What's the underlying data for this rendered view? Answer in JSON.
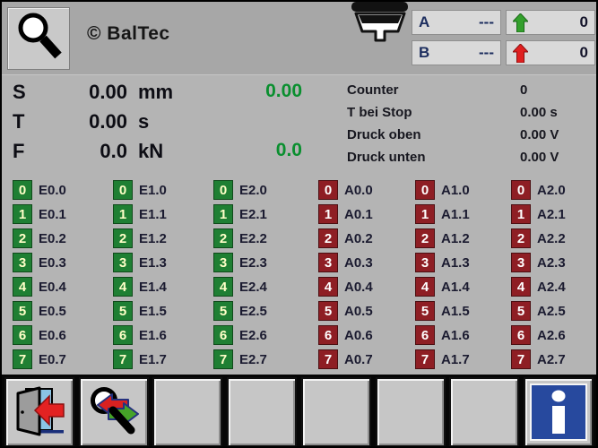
{
  "header": {
    "brand": "© BalTec",
    "screen_icon": "magnifier-icon",
    "tool_icon": "rivet-head-icon",
    "channels": [
      {
        "label": "A",
        "value": "---",
        "arrow": "green-up-arrow",
        "count": "0"
      },
      {
        "label": "B",
        "value": "---",
        "arrow": "red-up-arrow",
        "count": "0"
      }
    ]
  },
  "measurements": [
    {
      "label": "S",
      "value": "0.00",
      "unit": "mm",
      "result": "0.00"
    },
    {
      "label": "T",
      "value": "0.00",
      "unit": "s",
      "result": ""
    },
    {
      "label": "F",
      "value": "0.0",
      "unit": "kN",
      "result": "0.0"
    }
  ],
  "stats": [
    {
      "label": "Counter",
      "value": "0"
    },
    {
      "label": "T bei Stop",
      "value": "0.00 s"
    },
    {
      "label": "Druck oben",
      "value": "0.00 V"
    },
    {
      "label": "Druck unten",
      "value": "0.00 V"
    }
  ],
  "io_grid": {
    "columns": [
      {
        "id": "E0",
        "state": "green",
        "cells": [
          {
            "num": "0",
            "label": "E0.0"
          },
          {
            "num": "1",
            "label": "E0.1"
          },
          {
            "num": "2",
            "label": "E0.2"
          },
          {
            "num": "3",
            "label": "E0.3"
          },
          {
            "num": "4",
            "label": "E0.4"
          },
          {
            "num": "5",
            "label": "E0.5"
          },
          {
            "num": "6",
            "label": "E0.6"
          },
          {
            "num": "7",
            "label": "E0.7"
          }
        ]
      },
      {
        "id": "E1",
        "state": "green",
        "cells": [
          {
            "num": "0",
            "label": "E1.0"
          },
          {
            "num": "1",
            "label": "E1.1"
          },
          {
            "num": "2",
            "label": "E1.2"
          },
          {
            "num": "3",
            "label": "E1.3"
          },
          {
            "num": "4",
            "label": "E1.4"
          },
          {
            "num": "5",
            "label": "E1.5"
          },
          {
            "num": "6",
            "label": "E1.6"
          },
          {
            "num": "7",
            "label": "E1.7"
          }
        ]
      },
      {
        "id": "E2",
        "state": "green",
        "cells": [
          {
            "num": "0",
            "label": "E2.0"
          },
          {
            "num": "1",
            "label": "E2.1"
          },
          {
            "num": "2",
            "label": "E2.2"
          },
          {
            "num": "3",
            "label": "E2.3"
          },
          {
            "num": "4",
            "label": "E2.4"
          },
          {
            "num": "5",
            "label": "E2.5"
          },
          {
            "num": "6",
            "label": "E2.6"
          },
          {
            "num": "7",
            "label": "E2.7"
          }
        ]
      },
      {
        "id": "A0",
        "state": "red",
        "cells": [
          {
            "num": "0",
            "label": "A0.0"
          },
          {
            "num": "1",
            "label": "A0.1"
          },
          {
            "num": "2",
            "label": "A0.2"
          },
          {
            "num": "3",
            "label": "A0.3"
          },
          {
            "num": "4",
            "label": "A0.4"
          },
          {
            "num": "5",
            "label": "A0.5"
          },
          {
            "num": "6",
            "label": "A0.6"
          },
          {
            "num": "7",
            "label": "A0.7"
          }
        ]
      },
      {
        "id": "A1",
        "state": "red",
        "cells": [
          {
            "num": "0",
            "label": "A1.0"
          },
          {
            "num": "1",
            "label": "A1.1"
          },
          {
            "num": "2",
            "label": "A1.2"
          },
          {
            "num": "3",
            "label": "A1.3"
          },
          {
            "num": "4",
            "label": "A1.4"
          },
          {
            "num": "5",
            "label": "A1.5"
          },
          {
            "num": "6",
            "label": "A1.6"
          },
          {
            "num": "7",
            "label": "A1.7"
          }
        ]
      },
      {
        "id": "A2",
        "state": "red",
        "cells": [
          {
            "num": "0",
            "label": "A2.0"
          },
          {
            "num": "1",
            "label": "A2.1"
          },
          {
            "num": "2",
            "label": "A2.2"
          },
          {
            "num": "3",
            "label": "A2.3"
          },
          {
            "num": "4",
            "label": "A2.4"
          },
          {
            "num": "5",
            "label": "A2.5"
          },
          {
            "num": "6",
            "label": "A2.6"
          },
          {
            "num": "7",
            "label": "A2.7"
          }
        ]
      }
    ]
  },
  "footer": {
    "buttons": [
      {
        "name": "exit-button",
        "icon": "exit-door-icon",
        "interactable": true
      },
      {
        "name": "io-page-switch-button",
        "icon": "magnifier-swap-icon",
        "interactable": true
      },
      {
        "name": "empty-button-slot-1",
        "icon": "",
        "interactable": false
      },
      {
        "name": "empty-button-slot-2",
        "icon": "",
        "interactable": false
      },
      {
        "name": "empty-button-slot-3",
        "icon": "",
        "interactable": false
      },
      {
        "name": "empty-button-slot-4",
        "icon": "",
        "interactable": false
      },
      {
        "name": "empty-button-slot-5",
        "icon": "",
        "interactable": false
      },
      {
        "name": "info-button",
        "icon": "info-icon",
        "interactable": true
      }
    ]
  },
  "colors": {
    "io_green": "#1f7f33",
    "io_red": "#8e1e24",
    "arrow_green": "#33a02c",
    "arrow_red": "#e01f1f",
    "result_green": "#0a8f2f",
    "info_blue": "#27499e"
  }
}
